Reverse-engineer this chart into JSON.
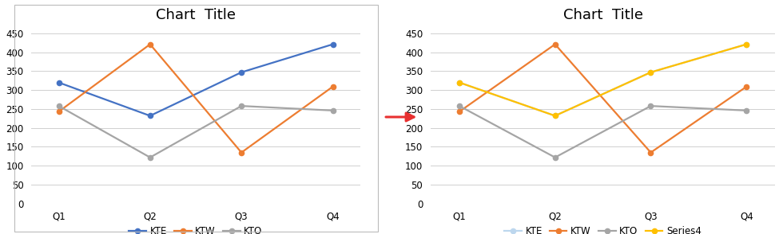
{
  "title": "Chart  Title",
  "categories": [
    "Q1",
    "Q2",
    "Q3",
    "Q4"
  ],
  "series_left": [
    {
      "name": "KTE",
      "values": [
        320,
        232,
        347,
        421
      ],
      "color": "#4472C4",
      "marker": "o"
    },
    {
      "name": "KTW",
      "values": [
        243,
        421,
        135,
        309
      ],
      "color": "#ED7D31",
      "marker": "o"
    },
    {
      "name": "KTO",
      "values": [
        258,
        122,
        258,
        246
      ],
      "color": "#A5A5A5",
      "marker": "o"
    }
  ],
  "series_right": [
    {
      "name": "KTE",
      "values": [
        320,
        232,
        347,
        421
      ],
      "color": "#BDD7EE",
      "marker": "o"
    },
    {
      "name": "KTW",
      "values": [
        243,
        421,
        135,
        309
      ],
      "color": "#ED7D31",
      "marker": "o"
    },
    {
      "name": "KTO",
      "values": [
        258,
        122,
        258,
        246
      ],
      "color": "#A5A5A5",
      "marker": "o"
    },
    {
      "name": "Series4",
      "values": [
        320,
        232,
        347,
        421
      ],
      "color": "#FFC000",
      "marker": "o"
    }
  ],
  "ylim": [
    0,
    470
  ],
  "yticks": [
    0,
    50,
    100,
    150,
    200,
    250,
    300,
    350,
    400,
    450
  ],
  "arrow_color": "#E83030",
  "bg_color": "#FFFFFF",
  "plot_bg_color": "#FFFFFF",
  "grid_color": "#D0D0D0",
  "title_fontsize": 13,
  "tick_fontsize": 8.5,
  "legend_fontsize": 8.5,
  "linewidth": 1.6,
  "marker_size": 4.5,
  "left_box_color": "#CCCCCC"
}
